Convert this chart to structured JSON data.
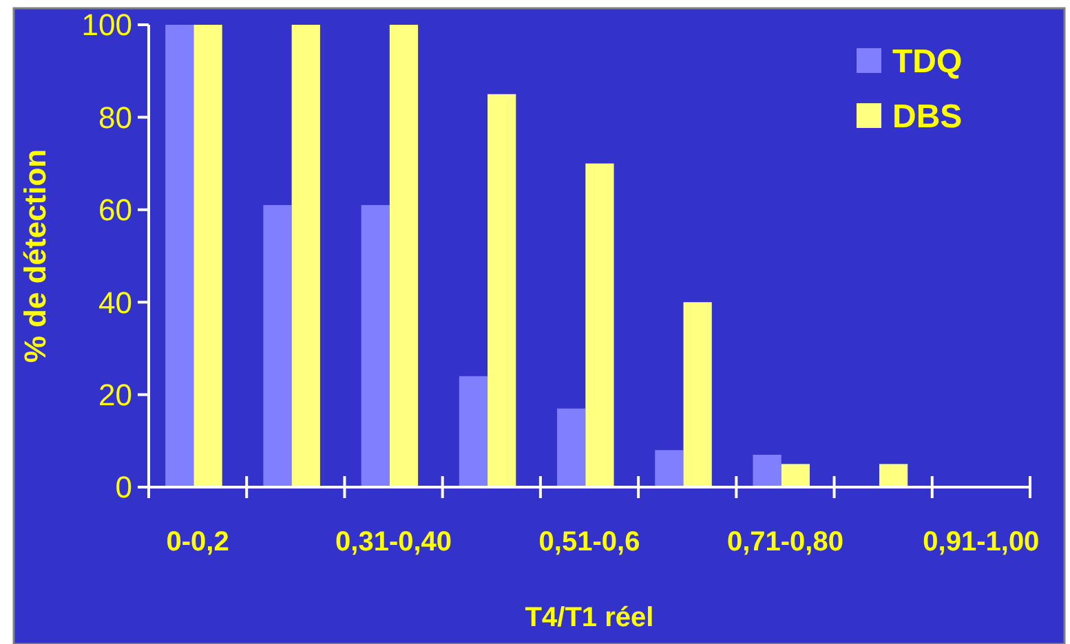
{
  "chart_data": {
    "type": "bar",
    "xlabel": "T4/T1 réel",
    "ylabel": "% de détection",
    "categories": [
      "0-0,2",
      null,
      "0,31-0,40",
      null,
      "0,51-0,6",
      null,
      "0,71-0,80",
      null,
      "0,91-1,00"
    ],
    "series": [
      {
        "name": "TDQ",
        "color": "#8080ff",
        "values": [
          100,
          61,
          61,
          24,
          17,
          8,
          7,
          0,
          0
        ]
      },
      {
        "name": "DBS",
        "color": "#ffff80",
        "values": [
          100,
          100,
          100,
          85,
          70,
          40,
          5,
          5,
          0
        ]
      }
    ],
    "ylim": [
      0,
      100
    ],
    "yticks": [
      0,
      20,
      40,
      60,
      80,
      100
    ],
    "grid": false,
    "legend": "top right"
  }
}
